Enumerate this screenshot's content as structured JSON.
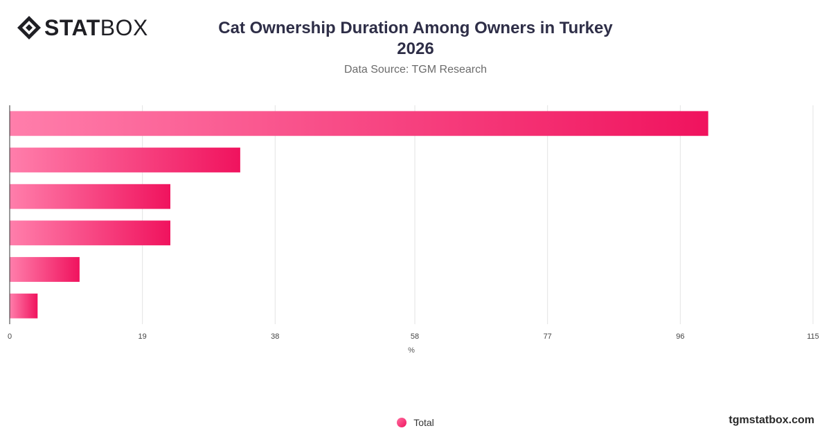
{
  "brand": {
    "logo_bold": "STAT",
    "logo_light": "BOX",
    "watermark": "tgmstatbox.com"
  },
  "title_line1": "Cat Ownership Duration Among Owners in Turkey",
  "title_line2": "2026",
  "subtitle": "Data Source: TGM Research",
  "colors": {
    "bar_start": "#ff7eab",
    "bar_end": "#f0135e",
    "grid": "#e3e3e3",
    "axis": "#333333"
  },
  "chart_data": {
    "type": "bar",
    "orientation": "horizontal",
    "title": "Cat Ownership Duration Among Owners in Turkey 2026",
    "xlabel": "%",
    "ylabel": "",
    "xlim": [
      0,
      115
    ],
    "x_ticks": [
      0,
      19,
      38,
      58,
      77,
      96,
      115
    ],
    "categories": [
      "",
      "",
      "",
      "",
      "",
      ""
    ],
    "series": [
      {
        "name": "Total",
        "values": [
          100,
          33,
          23,
          23,
          10,
          4
        ]
      }
    ],
    "grid": true,
    "legend_position": "bottom-center"
  }
}
